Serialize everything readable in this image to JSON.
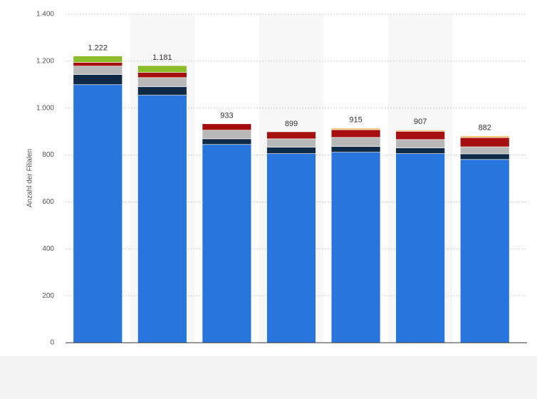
{
  "chart_data": {
    "type": "stacked_bar",
    "y_label": "Anzahl der Filialen",
    "categories": [
      null,
      null,
      null,
      null,
      null,
      null,
      null
    ],
    "series": [
      {
        "color": "#2876dd",
        "values": [
          1100,
          1055,
          845,
          806,
          812,
          806,
          781
        ]
      },
      {
        "color": "#0f2a47",
        "values": [
          43,
          36,
          24,
          27,
          24,
          24,
          24
        ]
      },
      {
        "color": "#b8b8b8",
        "values": [
          36,
          39,
          37,
          36,
          39,
          36,
          30
        ]
      },
      {
        "color": "#a50f0f",
        "values": [
          16,
          22,
          27,
          30,
          33,
          35,
          39
        ]
      },
      {
        "color": "#f5c97a",
        "values": [
          0,
          0,
          0,
          0,
          7,
          6,
          8
        ]
      },
      {
        "color": "#8cbc2a",
        "values": [
          27,
          29,
          0,
          0,
          0,
          0,
          0
        ]
      }
    ],
    "totals": {
      "values": [
        1222,
        1181,
        933,
        899,
        915,
        907,
        882
      ],
      "value_labels": [
        "1.222",
        "1.181",
        "933",
        "899",
        "915",
        "907",
        "882"
      ]
    },
    "ylim": [
      0,
      1400
    ],
    "yticks": [
      0,
      200,
      400,
      600,
      800,
      {
        "value": 1000,
        "label": "1.000"
      },
      {
        "value": 1200,
        "label": "1.200"
      },
      {
        "value": 1400,
        "label": "1.400"
      }
    ],
    "grid": true
  }
}
